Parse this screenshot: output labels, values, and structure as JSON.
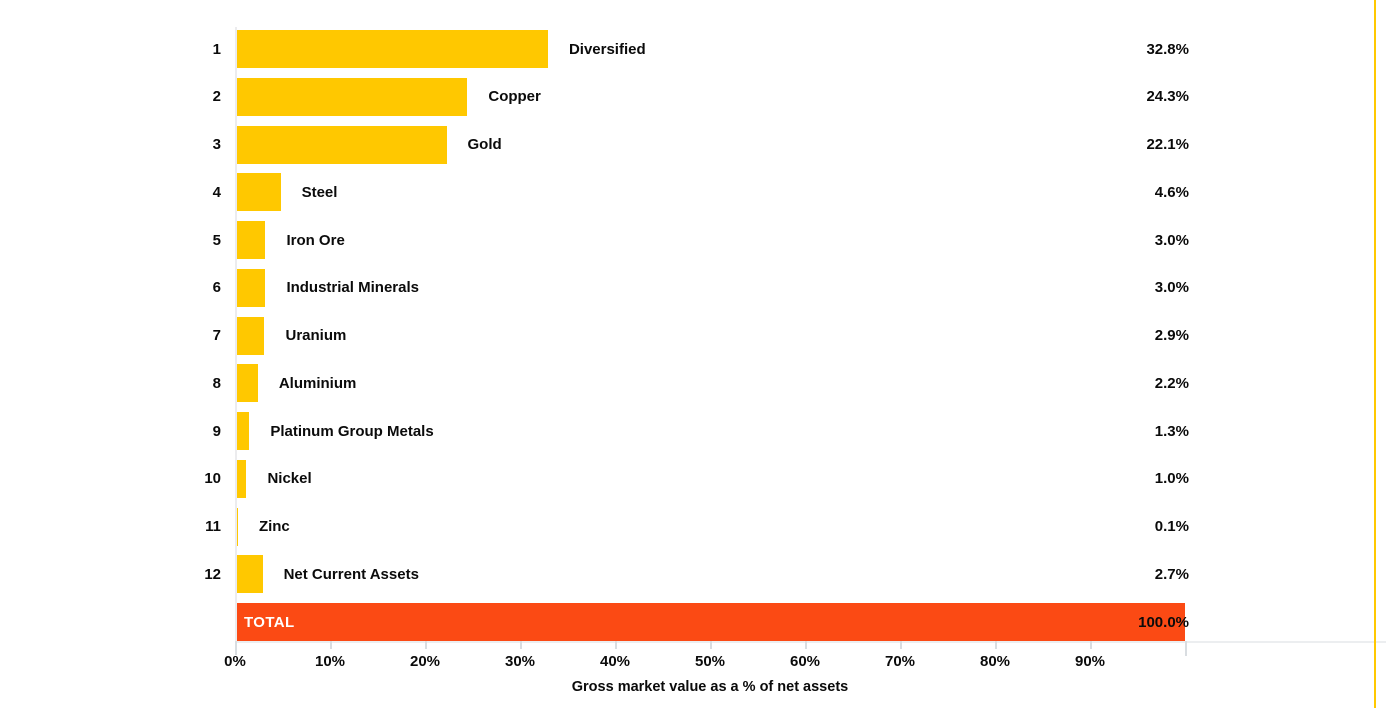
{
  "chart_data": {
    "type": "bar",
    "orientation": "horizontal",
    "title": "",
    "xlabel": "Gross market value as a % of net assets",
    "ylabel": "",
    "xlim": [
      0,
      100
    ],
    "grid": "off",
    "legend": "none",
    "bar_color": "#FFC800",
    "total_color": "#FB4A14",
    "axis_color": "#ececee",
    "tick_color": "#d9dde1",
    "text_color": "#0b0b0b",
    "accent_border_color": "#FFC800",
    "categories": [
      "Diversified",
      "Copper",
      "Gold",
      "Steel",
      "Iron Ore",
      "Industrial Minerals",
      "Uranium",
      "Aluminium",
      "Platinum Group Metals",
      "Nickel",
      "Zinc",
      "Net Current Assets"
    ],
    "values": [
      32.8,
      24.3,
      22.1,
      4.6,
      3.0,
      3.0,
      2.9,
      2.2,
      1.3,
      1.0,
      0.1,
      2.7
    ],
    "rows": [
      {
        "rank": "1",
        "label": "Diversified",
        "value": 32.8,
        "display": "32.8%"
      },
      {
        "rank": "2",
        "label": "Copper",
        "value": 24.3,
        "display": "24.3%"
      },
      {
        "rank": "3",
        "label": "Gold",
        "value": 22.1,
        "display": "22.1%"
      },
      {
        "rank": "4",
        "label": "Steel",
        "value": 4.6,
        "display": "4.6%"
      },
      {
        "rank": "5",
        "label": "Iron Ore",
        "value": 3.0,
        "display": "3.0%"
      },
      {
        "rank": "6",
        "label": "Industrial Minerals",
        "value": 3.0,
        "display": "3.0%"
      },
      {
        "rank": "7",
        "label": "Uranium",
        "value": 2.9,
        "display": "2.9%"
      },
      {
        "rank": "8",
        "label": "Aluminium",
        "value": 2.2,
        "display": "2.2%"
      },
      {
        "rank": "9",
        "label": "Platinum Group Metals",
        "value": 1.3,
        "display": "1.3%"
      },
      {
        "rank": "10",
        "label": "Nickel",
        "value": 1.0,
        "display": "1.0%"
      },
      {
        "rank": "11",
        "label": "Zinc",
        "value": 0.1,
        "display": "0.1%"
      },
      {
        "rank": "12",
        "label": "Net Current Assets",
        "value": 2.7,
        "display": "2.7%"
      }
    ],
    "total": {
      "label": "TOTAL",
      "value": 100.0,
      "display": "100.0%"
    },
    "x_ticks": [
      {
        "value": 0,
        "label": "0%"
      },
      {
        "value": 10,
        "label": "10%"
      },
      {
        "value": 20,
        "label": "20%"
      },
      {
        "value": 30,
        "label": "30%"
      },
      {
        "value": 40,
        "label": "40%"
      },
      {
        "value": 50,
        "label": "50%"
      },
      {
        "value": 60,
        "label": "60%"
      },
      {
        "value": 70,
        "label": "70%"
      },
      {
        "value": 80,
        "label": "80%"
      },
      {
        "value": 90,
        "label": "90%"
      }
    ]
  }
}
